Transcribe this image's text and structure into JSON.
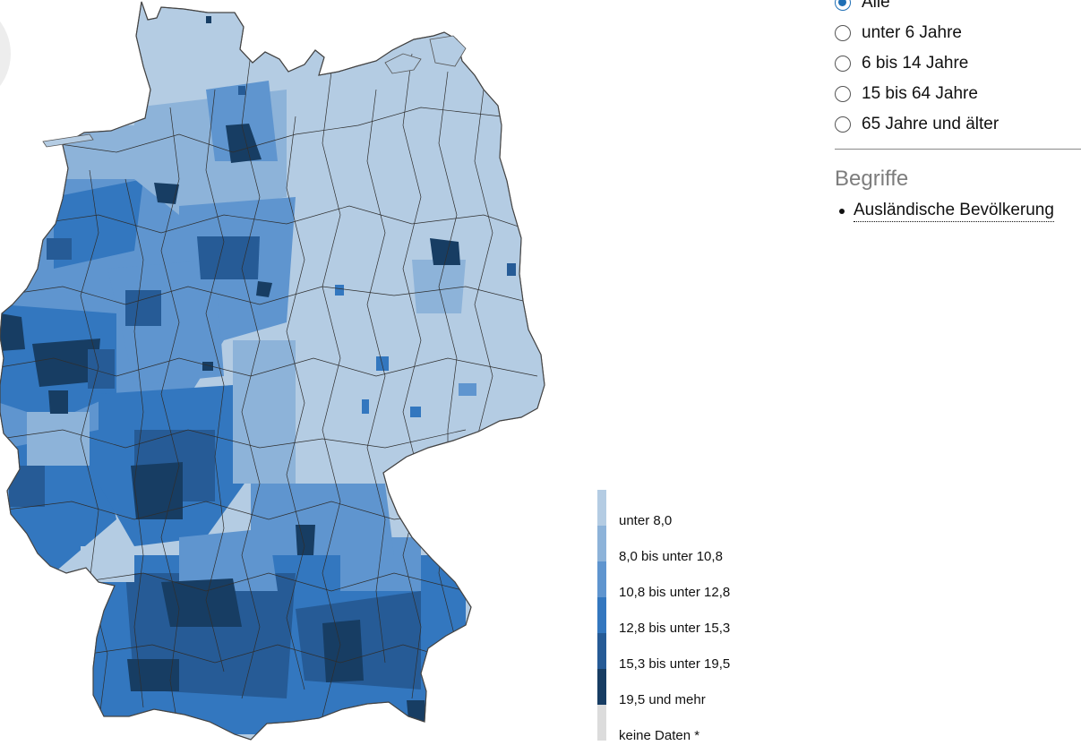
{
  "map": {
    "scheme": {
      "c1": "#b4cce3",
      "c2": "#8db3d9",
      "c3": "#5f95cf",
      "c4": "#3377bf",
      "c5": "#265b96",
      "c6": "#173d63",
      "nodata": "#dcdcdc",
      "border": "#3a3a3a"
    }
  },
  "age_filter": {
    "options": [
      {
        "label": "Alle",
        "checked": true
      },
      {
        "label": "unter 6 Jahre",
        "checked": false
      },
      {
        "label": "6 bis 14 Jahre",
        "checked": false
      },
      {
        "label": "15 bis 64 Jahre",
        "checked": false
      },
      {
        "label": "65 Jahre und älter",
        "checked": false
      }
    ]
  },
  "begriffe": {
    "heading": "Begriffe",
    "items": [
      "Ausländische Bevölkerung"
    ]
  },
  "legend": {
    "items": [
      {
        "label": "unter 8,0",
        "color": "#b4cce3"
      },
      {
        "label": "8,0 bis unter 10,8",
        "color": "#8db3d9"
      },
      {
        "label": "10,8 bis unter 12,8",
        "color": "#5f95cf"
      },
      {
        "label": "12,8 bis unter 15,3",
        "color": "#3377bf"
      },
      {
        "label": "15,3 bis unter 19,5",
        "color": "#265b96"
      },
      {
        "label": "19,5 und mehr",
        "color": "#173d63"
      },
      {
        "label": "keine Daten *",
        "color": "#dcdcdc"
      }
    ]
  }
}
